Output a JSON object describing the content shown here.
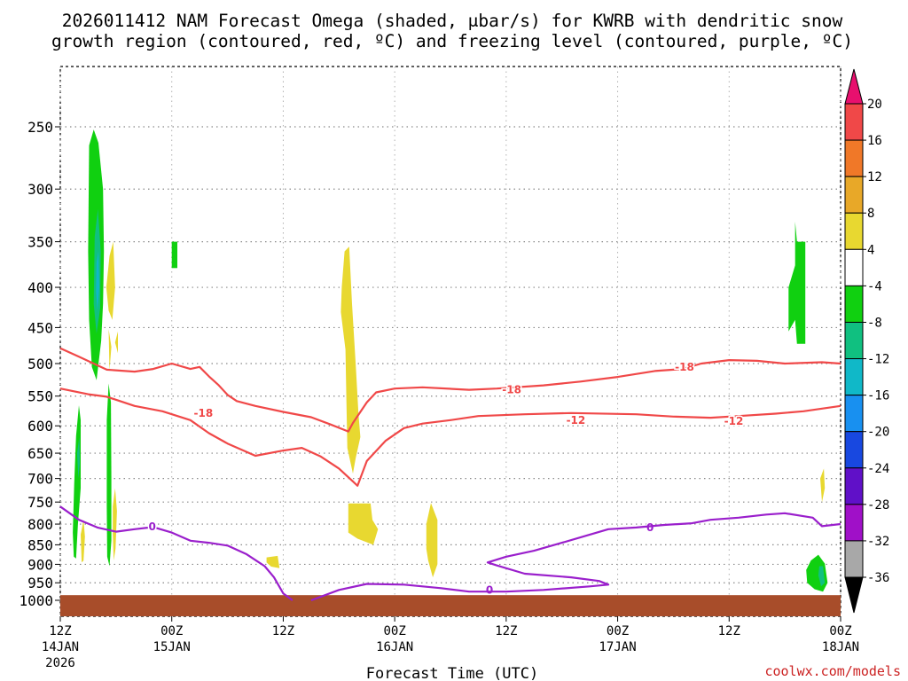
{
  "title_line1": "2026011412 NAM Forecast Omega (shaded, μbar/s) for KWRB with dendritic snow",
  "title_line2": "growth region (contoured, red, ºC) and freezing level (contoured, purple, ºC)",
  "credit": "coolwx.com/models",
  "colors": {
    "dgz": "#f04848",
    "freezing": "#9a1fcc",
    "ground": "#a84d2a",
    "grid": "#888888"
  },
  "chart_data": {
    "type": "heatmap",
    "title": "2026011412 NAM Forecast Omega (shaded, μbar/s) for KWRB with dendritic snow growth region (contoured, red, ºC) and freezing level (contoured, purple, ºC)",
    "xlabel": "Forecast Time (UTC)",
    "ylabel": "",
    "x_unit": "hours from 2026-01-14 12Z",
    "xlim": [
      0,
      84
    ],
    "x_ticks": [
      {
        "h": 0,
        "top": "12Z",
        "bottom": "14JAN",
        "extra": "2026"
      },
      {
        "h": 12,
        "top": "00Z",
        "bottom": "15JAN",
        "extra": ""
      },
      {
        "h": 24,
        "top": "12Z",
        "bottom": "",
        "extra": ""
      },
      {
        "h": 36,
        "top": "00Z",
        "bottom": "16JAN",
        "extra": ""
      },
      {
        "h": 48,
        "top": "12Z",
        "bottom": "",
        "extra": ""
      },
      {
        "h": 60,
        "top": "00Z",
        "bottom": "17JAN",
        "extra": ""
      },
      {
        "h": 72,
        "top": "12Z",
        "bottom": "",
        "extra": ""
      },
      {
        "h": 84,
        "top": "00Z",
        "bottom": "18JAN",
        "extra": ""
      }
    ],
    "y_ticks": [
      250,
      300,
      350,
      400,
      450,
      500,
      550,
      600,
      650,
      700,
      750,
      800,
      850,
      900,
      950,
      1000
    ],
    "colorbar": {
      "levels": [
        20,
        16,
        12,
        8,
        4,
        -4,
        -8,
        -12,
        -16,
        -20,
        -24,
        -28,
        -32,
        -36
      ],
      "colors": [
        "#e8106e",
        "#f04848",
        "#f07828",
        "#e8a828",
        "#e8d830",
        "#ffffff",
        "#10d010",
        "#10c080",
        "#10b8c8",
        "#1890f0",
        "#1848e0",
        "#6010c8",
        "#a010c8",
        "#a8a8a8",
        "#000000"
      ]
    },
    "omega_regions": [
      {
        "value": "-4 to -8",
        "color": "#10d010",
        "points": [
          [
            3.1,
            264
          ],
          [
            3.6,
            252
          ],
          [
            4.1,
            262
          ],
          [
            4.6,
            300
          ],
          [
            4.7,
            360
          ],
          [
            4.6,
            420
          ],
          [
            4.4,
            468
          ],
          [
            3.9,
            525
          ],
          [
            3.4,
            505
          ],
          [
            3.1,
            440
          ],
          [
            3.0,
            360
          ]
        ]
      },
      {
        "value": "-8 to -12",
        "color": "#10c080",
        "points": [
          [
            3.7,
            345
          ],
          [
            4.05,
            318
          ],
          [
            4.35,
            360
          ],
          [
            4.3,
            425
          ],
          [
            3.9,
            458
          ],
          [
            3.6,
            420
          ]
        ]
      },
      {
        "value": "-12 to -16",
        "color": "#10b8c8",
        "points": [
          [
            3.9,
            372
          ],
          [
            4.1,
            360
          ],
          [
            4.2,
            400
          ],
          [
            4.0,
            428
          ],
          [
            3.85,
            405
          ]
        ]
      },
      {
        "value": "-4 to -8",
        "color": "#10d010",
        "points": [
          [
            1.5,
            710
          ],
          [
            1.7,
            618
          ],
          [
            2.0,
            565
          ],
          [
            2.2,
            590
          ],
          [
            2.2,
            720
          ],
          [
            1.9,
            800
          ],
          [
            1.7,
            885
          ],
          [
            1.45,
            880
          ],
          [
            1.35,
            820
          ]
        ]
      },
      {
        "value": "-8 to -12",
        "color": "#10c080",
        "points": [
          [
            1.8,
            650
          ],
          [
            2.05,
            620
          ],
          [
            2.1,
            670
          ],
          [
            1.95,
            700
          ]
        ]
      },
      {
        "value": "-4 to -8",
        "color": "#10d010",
        "points": [
          [
            5.0,
            590
          ],
          [
            5.2,
            530
          ],
          [
            5.45,
            560
          ],
          [
            5.5,
            700
          ],
          [
            5.5,
            840
          ],
          [
            5.3,
            905
          ],
          [
            5.05,
            880
          ],
          [
            5.0,
            760
          ]
        ]
      },
      {
        "value": "4 to 8",
        "color": "#e8d830",
        "points": [
          [
            5.2,
            452
          ],
          [
            5.5,
            476
          ],
          [
            5.3,
            510
          ]
        ]
      },
      {
        "value": "4 to 8",
        "color": "#e8d830",
        "points": [
          [
            4.95,
            400
          ],
          [
            5.3,
            365
          ],
          [
            5.7,
            350
          ],
          [
            5.9,
            400
          ],
          [
            5.6,
            440
          ],
          [
            5.2,
            428
          ]
        ]
      },
      {
        "value": "4 to 8",
        "color": "#e8d830",
        "points": [
          [
            5.65,
            760
          ],
          [
            5.9,
            720
          ],
          [
            6.1,
            770
          ],
          [
            5.95,
            860
          ],
          [
            5.75,
            890
          ],
          [
            5.65,
            820
          ]
        ]
      },
      {
        "value": "4 to 8",
        "color": "#e8d830",
        "points": [
          [
            2.2,
            825
          ],
          [
            2.5,
            790
          ],
          [
            2.65,
            830
          ],
          [
            2.5,
            890
          ],
          [
            2.3,
            895
          ]
        ]
      },
      {
        "value": "-4 to -8",
        "color": "#10d010",
        "points": [
          [
            12.0,
            350
          ],
          [
            12.6,
            350
          ],
          [
            12.6,
            378
          ],
          [
            12.0,
            378
          ]
        ]
      },
      {
        "value": "4 to 8",
        "color": "#e8d830",
        "points": [
          [
            22.2,
            882
          ],
          [
            23.4,
            878
          ],
          [
            23.6,
            910
          ],
          [
            22.7,
            906
          ],
          [
            22.2,
            895
          ]
        ]
      },
      {
        "value": "4 to 8",
        "color": "#e8d830",
        "points": [
          [
            30.3,
            400
          ],
          [
            30.6,
            360
          ],
          [
            31.1,
            355
          ],
          [
            31.4,
            420
          ],
          [
            31.8,
            500
          ],
          [
            32.1,
            580
          ],
          [
            32.3,
            620
          ],
          [
            31.8,
            660
          ],
          [
            31.5,
            690
          ],
          [
            30.9,
            640
          ],
          [
            30.8,
            560
          ],
          [
            30.7,
            480
          ],
          [
            30.2,
            430
          ]
        ]
      },
      {
        "value": "4 to 8",
        "color": "#e8d830",
        "points": [
          [
            31.0,
            753
          ],
          [
            33.4,
            753
          ],
          [
            33.6,
            790
          ],
          [
            34.2,
            812
          ],
          [
            33.7,
            850
          ],
          [
            32.0,
            835
          ],
          [
            31.0,
            820
          ]
        ]
      },
      {
        "value": "4 to 8",
        "color": "#e8d830",
        "points": [
          [
            39.4,
            800
          ],
          [
            39.9,
            752
          ],
          [
            40.6,
            790
          ],
          [
            40.6,
            900
          ],
          [
            40.1,
            935
          ],
          [
            39.6,
            890
          ],
          [
            39.4,
            860
          ]
        ]
      },
      {
        "value": "-4 to -8",
        "color": "#10d010",
        "points": [
          [
            78.4,
            400
          ],
          [
            79.1,
            375
          ],
          [
            79.1,
            330
          ],
          [
            79.3,
            350
          ],
          [
            80.2,
            350
          ],
          [
            80.2,
            472
          ],
          [
            79.3,
            472
          ],
          [
            79.1,
            440
          ],
          [
            78.4,
            455
          ]
        ]
      },
      {
        "value": "-4 to -8",
        "color": "#10d010",
        "points": [
          [
            80.3,
            915
          ],
          [
            80.8,
            890
          ],
          [
            81.6,
            875
          ],
          [
            82.3,
            898
          ],
          [
            82.6,
            950
          ],
          [
            82.1,
            975
          ],
          [
            81.2,
            968
          ],
          [
            80.4,
            950
          ]
        ]
      },
      {
        "value": "-8 to -12",
        "color": "#10c080",
        "points": [
          [
            81.7,
            905
          ],
          [
            82.1,
            905
          ],
          [
            82.3,
            950
          ],
          [
            81.9,
            960
          ],
          [
            81.6,
            930
          ]
        ]
      },
      {
        "value": "4 to 8",
        "color": "#e8d830",
        "points": [
          [
            81.8,
            700
          ],
          [
            82.2,
            680
          ],
          [
            82.3,
            720
          ],
          [
            82.0,
            750
          ]
        ]
      },
      {
        "value": "4 to 8",
        "color": "#e8d830",
        "points": [
          [
            5.9,
            470
          ],
          [
            6.2,
            455
          ],
          [
            6.2,
            485
          ]
        ]
      }
    ],
    "dgz_contours": [
      {
        "label": "-18",
        "label_positions": [
          [
            15.4,
            578
          ],
          [
            48.6,
            540
          ],
          [
            67.2,
            505
          ]
        ],
        "points": [
          [
            0,
            478
          ],
          [
            2,
            490
          ],
          [
            5,
            509
          ],
          [
            8,
            512
          ],
          [
            10,
            508
          ],
          [
            12,
            500
          ],
          [
            14,
            508
          ],
          [
            15,
            505
          ],
          [
            16,
            519
          ],
          [
            17,
            532
          ],
          [
            18,
            548
          ],
          [
            19,
            558
          ],
          [
            21,
            566
          ],
          [
            24,
            576
          ],
          [
            27,
            585
          ],
          [
            29,
            597
          ],
          [
            31,
            610
          ],
          [
            31.5,
            595
          ],
          [
            33,
            560
          ],
          [
            34,
            544
          ],
          [
            36,
            538
          ],
          [
            39,
            536
          ],
          [
            44,
            540
          ],
          [
            47,
            538
          ],
          [
            52,
            533
          ],
          [
            56,
            527
          ],
          [
            60,
            520
          ],
          [
            64,
            511
          ],
          [
            67,
            508
          ],
          [
            69,
            500
          ],
          [
            72,
            495
          ],
          [
            75,
            496
          ],
          [
            78,
            500
          ],
          [
            82,
            498
          ],
          [
            84,
            500
          ]
        ]
      },
      {
        "label": "-12",
        "label_positions": [
          [
            55.5,
            590
          ],
          [
            72.5,
            592
          ]
        ],
        "points": [
          [
            0,
            538
          ],
          [
            3,
            547
          ],
          [
            5,
            551
          ],
          [
            8,
            566
          ],
          [
            11,
            575
          ],
          [
            14,
            590
          ],
          [
            16,
            613
          ],
          [
            18,
            632
          ],
          [
            21,
            655
          ],
          [
            24,
            645
          ],
          [
            26,
            640
          ],
          [
            28,
            656
          ],
          [
            30,
            680
          ],
          [
            31.5,
            706
          ],
          [
            32,
            715
          ],
          [
            33,
            665
          ],
          [
            35,
            627
          ],
          [
            37,
            604
          ],
          [
            39,
            596
          ],
          [
            42,
            590
          ],
          [
            45,
            583
          ],
          [
            50,
            580
          ],
          [
            55,
            578
          ],
          [
            62,
            580
          ],
          [
            66,
            584
          ],
          [
            70,
            586
          ],
          [
            73,
            583
          ],
          [
            77,
            579
          ],
          [
            80,
            575
          ],
          [
            84,
            566
          ]
        ]
      }
    ],
    "freezing_contours": [
      {
        "label": "0",
        "label_positions": [
          [
            9.9,
            806
          ],
          [
            63.5,
            808
          ],
          [
            46.2,
            970
          ]
        ],
        "points": [
          [
            0,
            760
          ],
          [
            2,
            790
          ],
          [
            4,
            808
          ],
          [
            6,
            818
          ],
          [
            8,
            812
          ],
          [
            10,
            807
          ],
          [
            12,
            820
          ],
          [
            14,
            840
          ],
          [
            16,
            845
          ],
          [
            18,
            852
          ],
          [
            20,
            873
          ],
          [
            22,
            905
          ],
          [
            23,
            935
          ],
          [
            24,
            980
          ],
          [
            25,
            1000
          ]
        ]
      },
      {
        "label": "0",
        "points": [
          [
            27,
            1000
          ],
          [
            30,
            970
          ],
          [
            33,
            953
          ],
          [
            37,
            955
          ],
          [
            41,
            965
          ],
          [
            44,
            975
          ],
          [
            48,
            975
          ],
          [
            52,
            970
          ],
          [
            57,
            960
          ],
          [
            59,
            955
          ],
          [
            58,
            945
          ],
          [
            55,
            935
          ],
          [
            50,
            925
          ],
          [
            47,
            903
          ],
          [
            46,
            895
          ],
          [
            48,
            880
          ],
          [
            51,
            865
          ],
          [
            54,
            845
          ],
          [
            57,
            825
          ],
          [
            59,
            812
          ],
          [
            62,
            808
          ],
          [
            65,
            802
          ],
          [
            68,
            798
          ],
          [
            70,
            790
          ],
          [
            73,
            785
          ],
          [
            76,
            778
          ],
          [
            78,
            775
          ],
          [
            81,
            785
          ],
          [
            82,
            805
          ],
          [
            84,
            800
          ]
        ]
      }
    ],
    "ground_pressure": 985
  }
}
